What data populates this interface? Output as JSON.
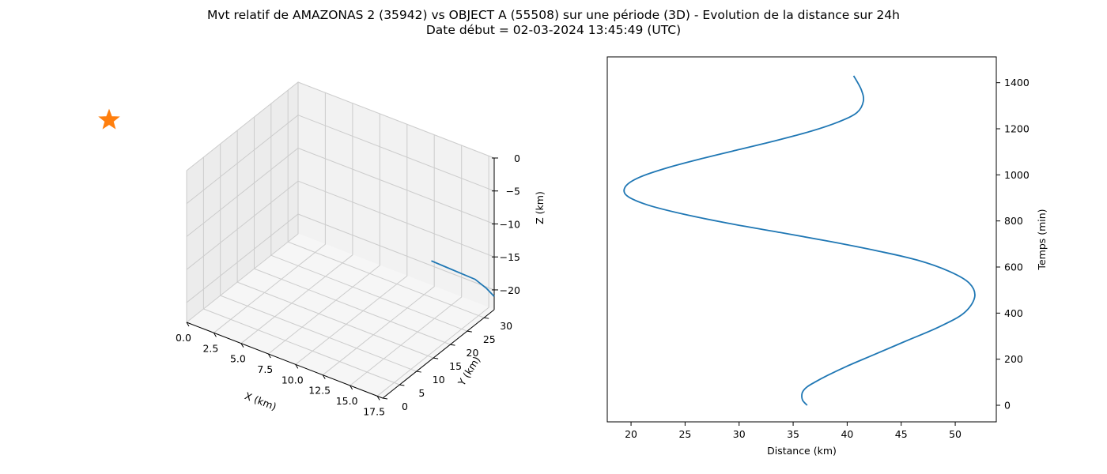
{
  "chart_title": {
    "line1": "Mvt relatif de AMAZONAS 2 (35942) vs OBJECT A (55508) sur une période (3D) - Evolution de la distance sur 24h",
    "line2": "Date début = 02-03-2024 13:45:49 (UTC)"
  },
  "chart_data": [
    {
      "type": "line",
      "projection": "3d",
      "title": "",
      "xlabel": "X (km)",
      "ylabel": "Y (km)",
      "zlabel": "Z (km)",
      "xlim": [
        0,
        18
      ],
      "ylim": [
        0,
        33
      ],
      "zlim": [
        -23,
        0
      ],
      "xticks": [
        "0.0",
        "2.5",
        "5.0",
        "7.5",
        "10.0",
        "12.5",
        "15.0",
        "17.5"
      ],
      "yticks": [
        "0",
        "5",
        "10",
        "15",
        "20",
        "25",
        "30"
      ],
      "zticks": [
        "0",
        "−5",
        "−10",
        "−15",
        "−20"
      ],
      "grid": true,
      "marker": {
        "shape": "star",
        "color": "#ff7f0e",
        "x": 0,
        "y": 0,
        "z": 0
      },
      "series": [
        {
          "color": "#1f77b4",
          "x": [
            17.5,
            17.6,
            17.7,
            17.8,
            17.9,
            18.0
          ],
          "y": [
            16.0,
            20.0,
            24.0,
            28.0,
            31.0,
            33.0
          ],
          "z": [
            -9.0,
            -11.5,
            -14.0,
            -16.5,
            -19.0,
            -21.0
          ]
        }
      ]
    },
    {
      "type": "line",
      "title": "",
      "xlabel": "Distance (km)",
      "ylabel": "Temps (min)",
      "xlim": [
        17.8,
        53.8
      ],
      "ylim": [
        -72,
        1512
      ],
      "xticks": [
        20,
        25,
        30,
        35,
        40,
        45,
        50
      ],
      "yticks": [
        0,
        200,
        400,
        600,
        800,
        1000,
        1200,
        1400
      ],
      "yaxis_position": "right",
      "grid": false,
      "series": [
        {
          "color": "#1f77b4",
          "x": [
            36.3,
            35.9,
            35.8,
            35.9,
            36.3,
            37.0,
            38.2,
            40.0,
            42.5,
            45.5,
            48.5,
            50.8,
            51.8,
            51.3,
            49.5,
            46.5,
            42.8,
            38.5,
            33.8,
            29.0,
            24.8,
            21.5,
            19.6,
            19.5,
            20.8,
            23.3,
            26.5,
            30.0,
            33.5,
            36.7,
            39.2,
            40.9,
            41.5,
            41.3,
            40.6
          ],
          "y": [
            0,
            20,
            40,
            60,
            80,
            100,
            130,
            170,
            220,
            280,
            340,
            400,
            470,
            530,
            580,
            630,
            670,
            710,
            750,
            790,
            830,
            870,
            910,
            950,
            990,
            1030,
            1070,
            1110,
            1150,
            1190,
            1230,
            1270,
            1320,
            1370,
            1430
          ]
        }
      ]
    }
  ]
}
